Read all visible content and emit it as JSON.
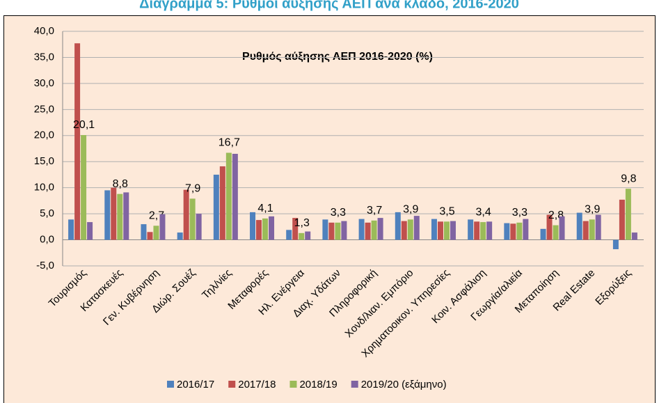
{
  "chart_data": {
    "type": "bar",
    "title": "Διάγραμμα 5: Ρυθμοί αύξησης ΑΕΠ ανά κλάδο, 2016-2020",
    "annotation": "Ρυθμός αύξησης ΑΕΠ 2016-2020 (%)",
    "categories": [
      "Τουρισμός",
      "Κατασκευές",
      "Γεν. Κυβέρνηση",
      "Διώρ. Σουέζ",
      "Τηλ/νίες",
      "Μεταφορές",
      "Ηλ. Ενέργεια",
      "Διαχ. Υδάτων",
      "Πληροφορική",
      "Χονδ/λιαν. Εμπόριο",
      "Χρηματοοικον. Υπηρεσίες",
      "Κοιν. Ασφάλιση",
      "Γεωργία/αλιεία",
      "Μεταποίηση",
      "Real Estate",
      "Εξορύξεις"
    ],
    "series": [
      {
        "name": "2016/17",
        "color": "#4f81bd",
        "values": [
          3.9,
          9.5,
          3.0,
          1.4,
          12.5,
          5.3,
          1.9,
          3.9,
          4.0,
          5.3,
          4.0,
          3.9,
          3.2,
          2.1,
          5.2,
          -1.8
        ]
      },
      {
        "name": "2017/18",
        "color": "#c0504d",
        "values": [
          37.7,
          10.0,
          1.5,
          9.6,
          14.1,
          3.8,
          4.2,
          3.3,
          3.3,
          3.6,
          3.5,
          3.5,
          3.1,
          4.8,
          3.6,
          7.7
        ]
      },
      {
        "name": "2018/19",
        "color": "#9bbb59",
        "values": [
          20.1,
          8.8,
          2.7,
          7.9,
          16.7,
          4.1,
          1.3,
          3.3,
          3.7,
          3.9,
          3.5,
          3.4,
          3.3,
          2.8,
          3.9,
          9.8
        ],
        "value_labels": [
          "20,1",
          "8,8",
          "2,7",
          "7,9",
          "16,7",
          "4,1",
          "1,3",
          "3,3",
          "3,7",
          "3,9",
          "3,5",
          "3,4",
          "3,3",
          "2,8",
          "3,9",
          "9,8"
        ]
      },
      {
        "name": "2019/20 (εξάμηνο)",
        "color": "#8064a2",
        "values": [
          3.4,
          9.1,
          4.9,
          5.0,
          16.5,
          4.5,
          1.6,
          3.6,
          4.2,
          4.6,
          3.6,
          3.5,
          4.0,
          4.5,
          4.8,
          1.4
        ]
      }
    ],
    "ylim": [
      -5,
      40
    ],
    "yticks": [
      {
        "value": -5,
        "label": "-5,0"
      },
      {
        "value": 0,
        "label": "0,0"
      },
      {
        "value": 5,
        "label": "5,0"
      },
      {
        "value": 10,
        "label": "10,0"
      },
      {
        "value": 15,
        "label": "15,0"
      },
      {
        "value": 20,
        "label": "20,0"
      },
      {
        "value": 25,
        "label": "25,0"
      },
      {
        "value": 30,
        "label": "30,0"
      },
      {
        "value": 35,
        "label": "35,0"
      },
      {
        "value": 40,
        "label": "40,0"
      }
    ],
    "grid": true
  }
}
